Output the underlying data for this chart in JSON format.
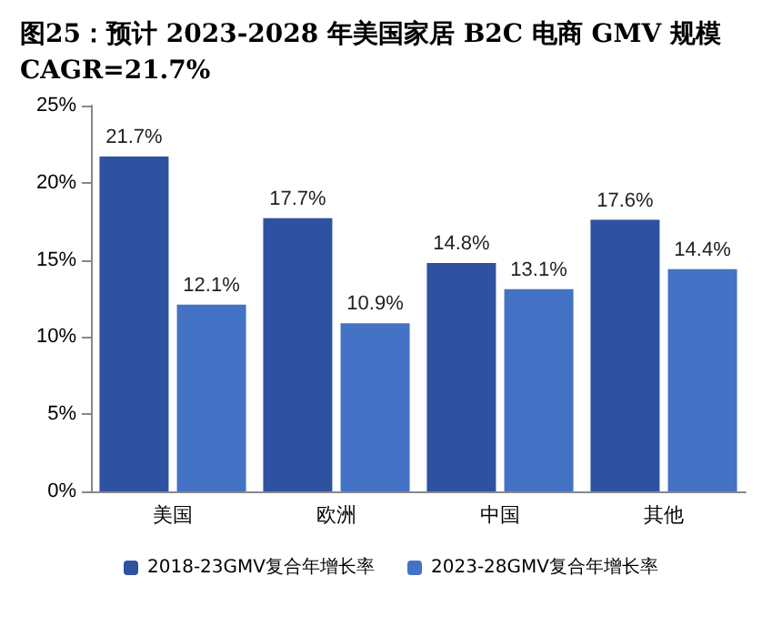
{
  "chart_data": {
    "type": "bar",
    "title": "图25：预计 2023-2028 年美国家居 B2C 电商 GMV 规模 CAGR=21.7%",
    "categories": [
      "美国",
      "欧洲",
      "中国",
      "其他"
    ],
    "series": [
      {
        "name": "2018-23GMV复合年增长率",
        "color": "#2f52a0",
        "values": [
          21.7,
          17.7,
          14.8,
          17.6
        ],
        "value_labels": [
          "21.7%",
          "17.7%",
          "14.8%",
          "17.6%"
        ]
      },
      {
        "name": "2023-28GMV复合年增长率",
        "color": "#4472c4",
        "values": [
          12.1,
          10.9,
          13.1,
          14.4
        ],
        "value_labels": [
          "12.1%",
          "10.9%",
          "13.1%",
          "14.4%"
        ]
      }
    ],
    "ylim": [
      0,
      25
    ],
    "yticks": [
      {
        "value": 0,
        "label": "0%"
      },
      {
        "value": 5,
        "label": "5%"
      },
      {
        "value": 10,
        "label": "10%"
      },
      {
        "value": 15,
        "label": "15%"
      },
      {
        "value": 20,
        "label": "20%"
      },
      {
        "value": 25,
        "label": "25%"
      }
    ],
    "grid": false,
    "legend": "bottom"
  }
}
